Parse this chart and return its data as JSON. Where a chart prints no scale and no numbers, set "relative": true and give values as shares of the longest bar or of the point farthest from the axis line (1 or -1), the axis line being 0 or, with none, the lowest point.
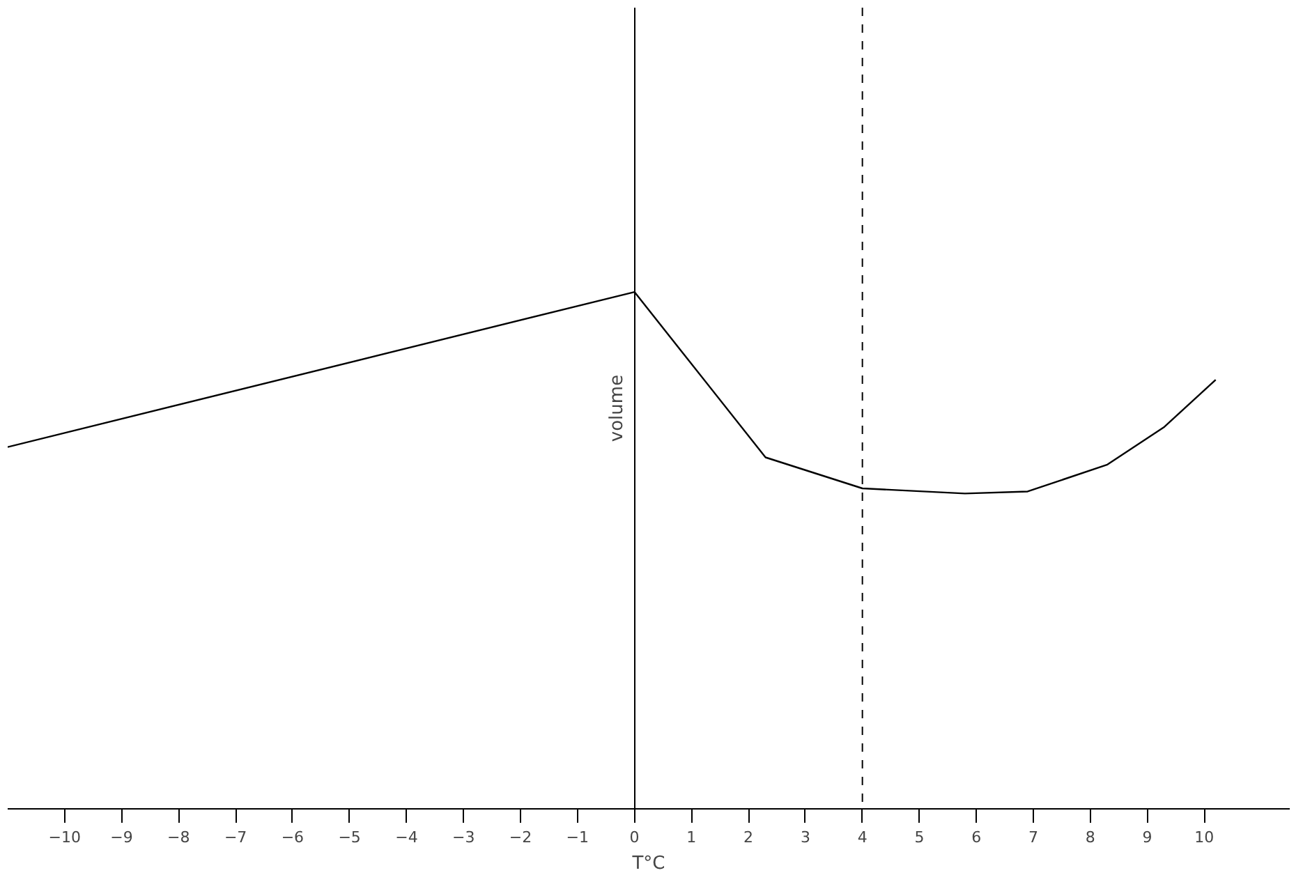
{
  "chart_data": {
    "type": "line",
    "relative": true,
    "xlabel": "T°C",
    "ylabel": "volume",
    "x": [
      -11,
      0,
      2.3,
      4,
      5.8,
      6.9,
      8.3,
      9.3,
      10.2
    ],
    "series": [
      {
        "color": "#000000",
        "values": [
          0.7,
          1,
          0.68,
          0.62,
          0.61,
          0.614,
          0.666,
          0.739,
          0.83
        ]
      }
    ],
    "xlim": [
      -11,
      11.5
    ],
    "xticks": [
      -10,
      -9,
      -8,
      -7,
      -6,
      -5,
      -4,
      -3,
      -2,
      -1,
      0,
      1,
      2,
      3,
      4,
      5,
      6,
      7,
      8,
      9,
      10
    ],
    "ref_lines": [
      {
        "axis": "x",
        "value": 4,
        "color": "#000000",
        "line_style": "dashed"
      }
    ],
    "grid": false
  }
}
